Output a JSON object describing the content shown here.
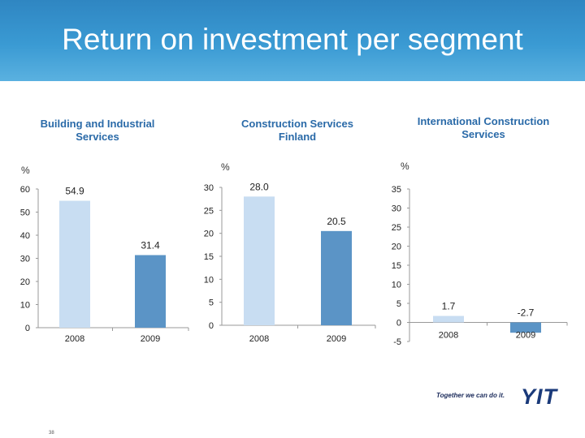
{
  "slide": {
    "title": "Return on investment per segment",
    "slogan": "Together we can do it.",
    "logo": "YIT",
    "page_number": "38"
  },
  "colors": {
    "header": "#3a9ad3",
    "bar_2008": "#c8ddf2",
    "bar_2009": "#5b94c6",
    "title_text": "#2a6aa8"
  },
  "chart_data": [
    {
      "type": "bar",
      "title": "Building and Industrial Services",
      "unit": "%",
      "categories": [
        "2008",
        "2009"
      ],
      "values": [
        54.9,
        31.4
      ],
      "value_labels": [
        "54.9",
        "31.4"
      ],
      "ylim": [
        0,
        60
      ],
      "yticks": [
        "0",
        "10",
        "20",
        "30",
        "40",
        "50",
        "60"
      ],
      "grid": false
    },
    {
      "type": "bar",
      "title": "Construction Services Finland",
      "unit": "%",
      "categories": [
        "2008",
        "2009"
      ],
      "values": [
        28.0,
        20.5
      ],
      "value_labels": [
        "28.0",
        "20.5"
      ],
      "ylim": [
        0,
        30
      ],
      "yticks": [
        "0",
        "5",
        "10",
        "15",
        "20",
        "25",
        "30"
      ],
      "grid": false
    },
    {
      "type": "bar",
      "title": "International Construction Services",
      "unit": "%",
      "categories": [
        "2008",
        "2009"
      ],
      "values": [
        1.7,
        -2.7
      ],
      "value_labels": [
        "1.7",
        "-2.7"
      ],
      "ylim": [
        -5,
        35
      ],
      "yticks": [
        "-5",
        "0",
        "5",
        "10",
        "15",
        "20",
        "25",
        "30",
        "35"
      ],
      "grid": false
    }
  ]
}
